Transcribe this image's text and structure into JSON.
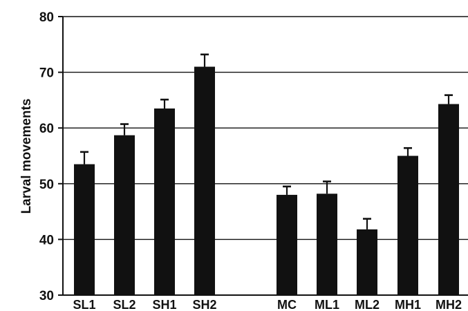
{
  "chart_data": {
    "type": "bar",
    "ylabel": "Larval movements",
    "ylim": [
      30,
      80
    ],
    "yticks": [
      "30",
      "40",
      "50",
      "60",
      "70",
      "80"
    ],
    "grid": "horizontal",
    "categories": [
      "SL1",
      "SL2",
      "SH1",
      "SH2",
      "MC",
      "ML1",
      "ML2",
      "MH1",
      "MH2"
    ],
    "values": [
      53.5,
      58.7,
      63.5,
      71.0,
      48.0,
      48.2,
      41.8,
      55.0,
      64.3
    ],
    "errors": [
      2.2,
      2.0,
      1.6,
      2.2,
      1.5,
      2.2,
      1.9,
      1.4,
      1.6
    ],
    "groups": [
      [
        "SL1",
        "SL2",
        "SH1",
        "SH2"
      ],
      [
        "MC",
        "ML1",
        "ML2",
        "MH1",
        "MH2"
      ]
    ],
    "bar_color": "#111111"
  }
}
